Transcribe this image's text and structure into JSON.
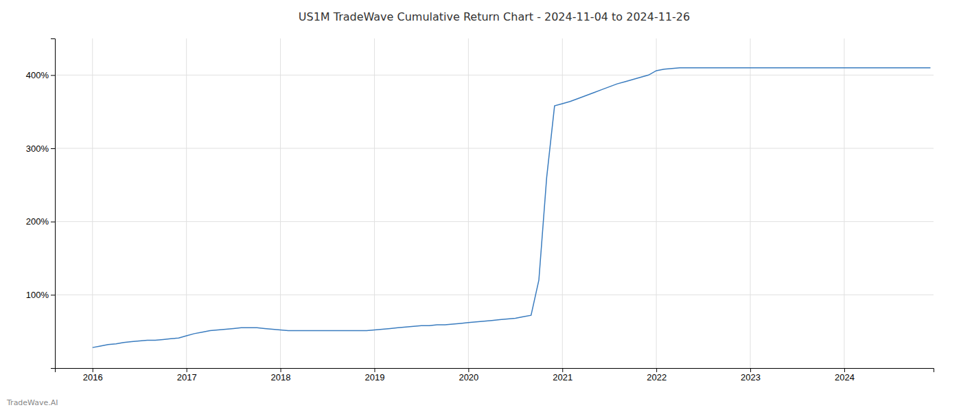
{
  "chart_data": {
    "type": "line",
    "title": "US1M TradeWave Cumulative Return Chart - 2024-11-04 to 2024-11-26",
    "annotations": [
      "TradeWave.AI"
    ],
    "color": "#3a7cbf",
    "x": [
      2016.0,
      2016.083,
      2016.167,
      2016.25,
      2016.333,
      2016.417,
      2016.5,
      2016.583,
      2016.667,
      2016.75,
      2016.833,
      2016.917,
      2017.0,
      2017.083,
      2017.167,
      2017.25,
      2017.333,
      2017.417,
      2017.5,
      2017.583,
      2017.667,
      2017.75,
      2017.833,
      2017.917,
      2018.0,
      2018.083,
      2018.167,
      2018.25,
      2018.333,
      2018.417,
      2018.5,
      2018.583,
      2018.667,
      2018.75,
      2018.833,
      2018.917,
      2019.0,
      2019.083,
      2019.167,
      2019.25,
      2019.333,
      2019.417,
      2019.5,
      2019.583,
      2019.667,
      2019.75,
      2019.833,
      2019.917,
      2020.0,
      2020.083,
      2020.167,
      2020.25,
      2020.333,
      2020.417,
      2020.5,
      2020.583,
      2020.667,
      2020.75,
      2020.833,
      2020.917,
      2021.0,
      2021.083,
      2021.167,
      2021.25,
      2021.333,
      2021.417,
      2021.5,
      2021.583,
      2021.667,
      2021.75,
      2021.833,
      2021.917,
      2022.0,
      2022.083,
      2022.167,
      2022.25,
      2022.333,
      2022.417,
      2022.5,
      2022.583,
      2022.667,
      2022.75,
      2022.833,
      2022.917,
      2023.0,
      2023.083,
      2023.167,
      2023.25,
      2023.333,
      2023.417,
      2023.5,
      2023.583,
      2023.667,
      2023.75,
      2023.833,
      2023.917,
      2024.0,
      2024.083,
      2024.167,
      2024.25,
      2024.333,
      2024.417,
      2024.5,
      2024.583,
      2024.667,
      2024.75,
      2024.833,
      2024.917
    ],
    "values": [
      28,
      30,
      32,
      33,
      35,
      36,
      37,
      38,
      38,
      39,
      40,
      41,
      44,
      47,
      49,
      51,
      52,
      53,
      54,
      55,
      55,
      55,
      54,
      53,
      52,
      51,
      51,
      51,
      51,
      51,
      51,
      51,
      51,
      51,
      51,
      51,
      52,
      53,
      54,
      55,
      56,
      57,
      58,
      58,
      59,
      59,
      60,
      61,
      62,
      63,
      64,
      65,
      66,
      67,
      68,
      70,
      72,
      120,
      260,
      358,
      361,
      364,
      368,
      372,
      376,
      380,
      384,
      388,
      391,
      394,
      397,
      400,
      406,
      408,
      409,
      410,
      410,
      410,
      410,
      410,
      410,
      410,
      410,
      410,
      410,
      410,
      410,
      410,
      410,
      410,
      410,
      410,
      410,
      410,
      410,
      410,
      410,
      410,
      410,
      410,
      410,
      410,
      410,
      410,
      410,
      410,
      410,
      410
    ],
    "xlim": [
      2015.6,
      2024.95
    ],
    "ylim": [
      0,
      450
    ],
    "xticks": [
      2016,
      2017,
      2018,
      2019,
      2020,
      2021,
      2022,
      2023,
      2024
    ],
    "yticks": [
      {
        "value": 100,
        "label": "100%"
      },
      {
        "value": 200,
        "label": "200%"
      },
      {
        "value": 300,
        "label": "300%"
      },
      {
        "value": 400,
        "label": "400%"
      }
    ],
    "grid": true
  }
}
